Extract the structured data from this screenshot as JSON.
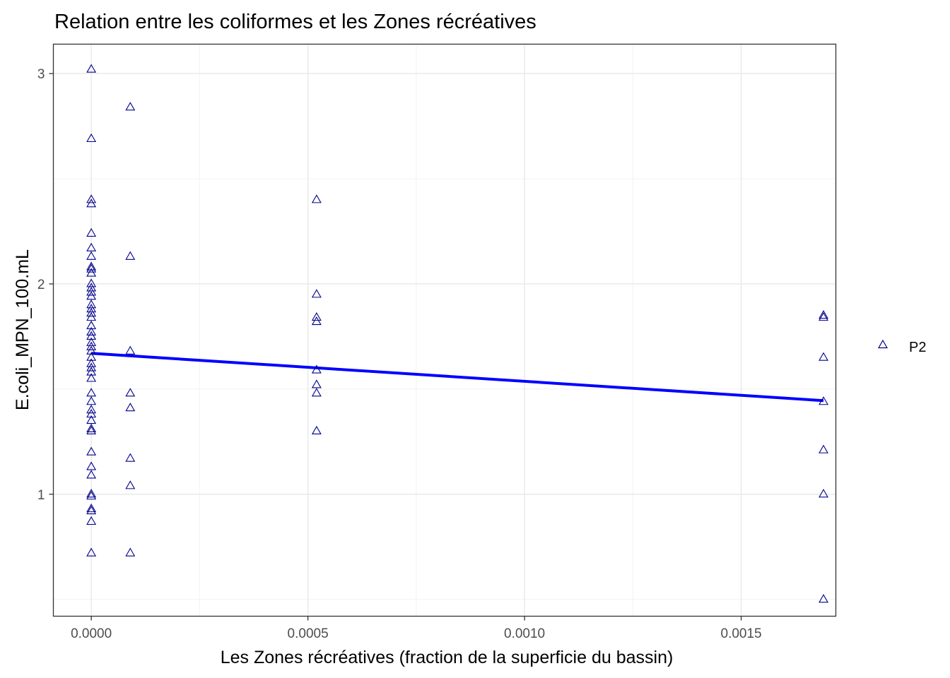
{
  "chart_data": {
    "type": "scatter",
    "title": "Relation entre les coliformes et les Zones récréatives",
    "xlabel": "Les Zones récréatives (fraction de la superficie du bassin)",
    "ylabel": "E.coli_MPN_100.mL",
    "xlim": [
      -8.75e-05,
      0.0017185
    ],
    "ylim": [
      0.42,
      3.14
    ],
    "x_ticks": [
      0,
      0.0005,
      0.001,
      0.0015
    ],
    "x_tick_labels": [
      "0.0000",
      "0.0005",
      "0.0010",
      "0.0015"
    ],
    "y_ticks": [
      1,
      2,
      3
    ],
    "y_tick_labels": [
      "1",
      "2",
      "3"
    ],
    "grid": true,
    "legend_position": "right",
    "colors": {
      "points": "#00008b",
      "trend": "#0000ff"
    },
    "series": [
      {
        "name": "P2",
        "marker": "open-triangle",
        "points": [
          [
            0,
            3.02
          ],
          [
            0,
            2.69
          ],
          [
            0,
            2.4
          ],
          [
            0,
            2.38
          ],
          [
            0,
            2.24
          ],
          [
            0,
            2.17
          ],
          [
            0,
            2.13
          ],
          [
            0,
            2.08
          ],
          [
            0,
            2.07
          ],
          [
            0,
            2.05
          ],
          [
            0,
            2.0
          ],
          [
            0,
            1.98
          ],
          [
            0,
            1.96
          ],
          [
            0,
            1.94
          ],
          [
            0,
            1.9
          ],
          [
            0,
            1.88
          ],
          [
            0,
            1.86
          ],
          [
            0,
            1.84
          ],
          [
            0,
            1.8
          ],
          [
            0,
            1.77
          ],
          [
            0,
            1.75
          ],
          [
            0,
            1.72
          ],
          [
            0,
            1.7
          ],
          [
            0,
            1.68
          ],
          [
            0,
            1.65
          ],
          [
            0,
            1.62
          ],
          [
            0,
            1.6
          ],
          [
            0,
            1.58
          ],
          [
            0,
            1.55
          ],
          [
            0,
            1.48
          ],
          [
            0,
            1.44
          ],
          [
            0,
            1.4
          ],
          [
            0,
            1.38
          ],
          [
            0,
            1.35
          ],
          [
            0,
            1.31
          ],
          [
            0,
            1.3
          ],
          [
            0,
            1.2
          ],
          [
            0,
            1.13
          ],
          [
            0,
            1.09
          ],
          [
            0,
            1.0
          ],
          [
            0,
            0.99
          ],
          [
            0,
            0.93
          ],
          [
            0,
            0.92
          ],
          [
            0,
            0.87
          ],
          [
            0,
            0.72
          ],
          [
            9e-05,
            2.84
          ],
          [
            9e-05,
            2.13
          ],
          [
            9e-05,
            1.68
          ],
          [
            9e-05,
            1.48
          ],
          [
            9e-05,
            1.41
          ],
          [
            9e-05,
            1.17
          ],
          [
            9e-05,
            1.04
          ],
          [
            9e-05,
            0.72
          ],
          [
            0.00052,
            2.4
          ],
          [
            0.00052,
            1.95
          ],
          [
            0.00052,
            1.84
          ],
          [
            0.00052,
            1.82
          ],
          [
            0.00052,
            1.59
          ],
          [
            0.00052,
            1.52
          ],
          [
            0.00052,
            1.48
          ],
          [
            0.00052,
            1.3
          ],
          [
            0.00169,
            1.85
          ],
          [
            0.00169,
            1.84
          ],
          [
            0.00169,
            1.65
          ],
          [
            0.00169,
            1.44
          ],
          [
            0.00169,
            1.21
          ],
          [
            0.00169,
            1.0
          ],
          [
            0.00169,
            0.5
          ]
        ]
      }
    ],
    "trend_line": {
      "x": [
        0,
        0.00169
      ],
      "y": [
        1.67,
        1.445
      ]
    }
  }
}
